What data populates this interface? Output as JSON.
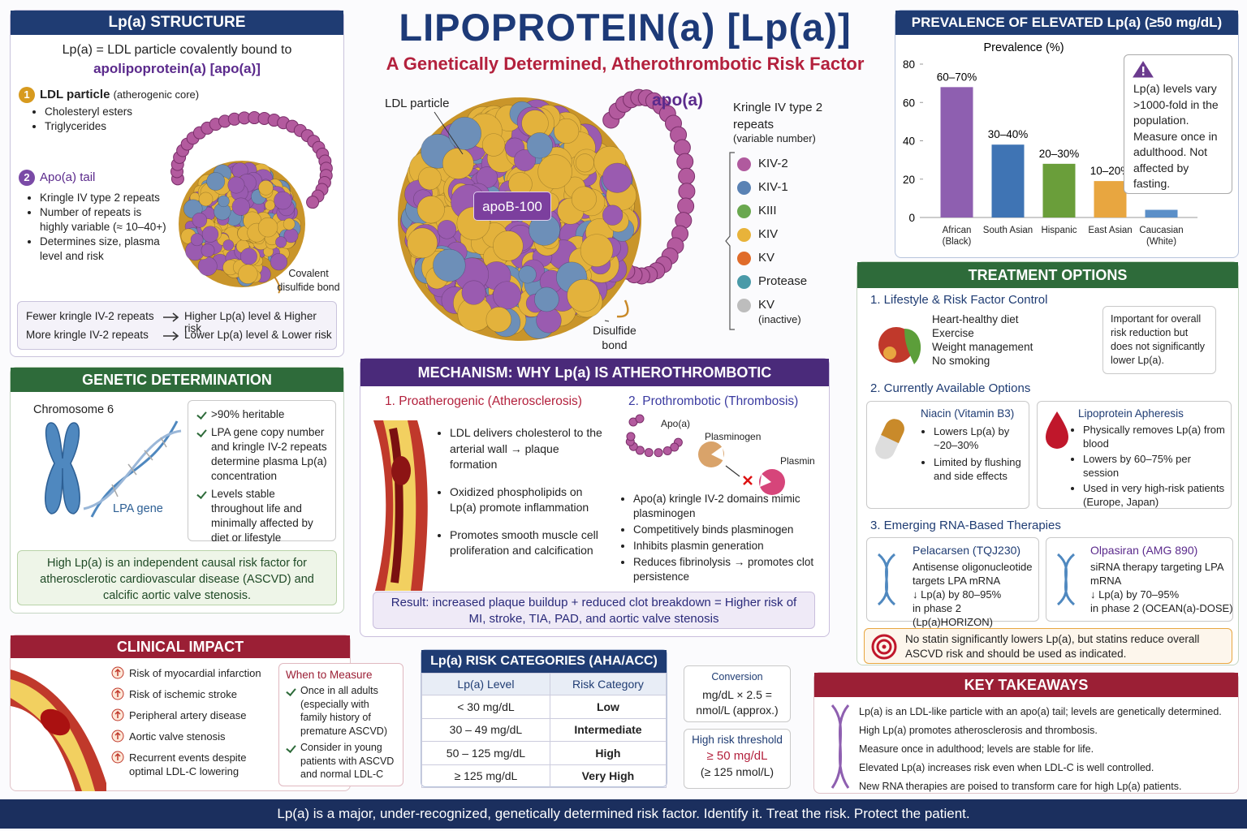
{
  "header": {
    "title": "LIPOPROTEIN(a) [Lp(a)]",
    "subtitle": "A Genetically Determined, Atherothrombotic Risk Factor"
  },
  "structure": {
    "title": "Lp(a) STRUCTURE",
    "intro": "Lp(a) = LDL particle covalently bound to",
    "intro_em": "apolipoprotein(a) [apo(a)]",
    "items": [
      {
        "number": "1",
        "label": "LDL particle",
        "note": "(atherogenic core)",
        "bullets": [
          "Cholesteryl esters",
          "Triglycerides"
        ]
      },
      {
        "number": "2",
        "label": "Apo(a) tail",
        "bullets": [
          "Kringle IV type 2 repeats",
          "Number of repeats is highly variable (≈ 10–40+)",
          "Determines size, plasma level and risk"
        ]
      }
    ],
    "bond_label": "Covalent disulfide bond",
    "rules": [
      {
        "left": "Fewer kringle IV-2 repeats",
        "right": "Higher Lp(a) level & Higher risk"
      },
      {
        "left": "More kringle IV-2 repeats",
        "right": "Lower Lp(a) level & Lower risk"
      }
    ]
  },
  "diagram": {
    "ldl_label": "LDL particle",
    "apo_label": "apo(a)",
    "apob_label": "apoB-100",
    "bond_label": "Disulfide bond",
    "legend_title": "Kringle IV type 2 repeats",
    "legend_note": "(variable number)",
    "legend": [
      {
        "name": "KIV-2",
        "color": "#b05a9e"
      },
      {
        "name": "KIV-1",
        "color": "#5a82b4"
      },
      {
        "name": "KIII",
        "color": "#6aa84f"
      },
      {
        "name": "KIV",
        "color": "#e8b33a"
      },
      {
        "name": "KV",
        "color": "#e06c2a"
      },
      {
        "name": "Protease",
        "color": "#4a9aa8"
      },
      {
        "name": "KV",
        "note": "(inactive)",
        "color": "#bdbdbd"
      }
    ]
  },
  "genetic": {
    "title": "GENETIC DETERMINATION",
    "chromosome": "Chromosome 6",
    "gene": "LPA gene",
    "checks": [
      ">90% heritable",
      "LPA gene copy number and kringle IV-2 repeats determine plasma Lp(a) concentration",
      "Levels stable throughout life and minimally affected by diet or lifestyle"
    ],
    "callout": "High Lp(a) is an independent causal risk factor for atherosclerotic cardiovascular disease (ASCVD) and calcific aortic valve stenosis."
  },
  "mechanism": {
    "title": "MECHANISM: WHY Lp(a) IS ATHEROTHROMBOTIC",
    "columns": [
      {
        "heading": "1.  Proatherogenic (Atherosclerosis)",
        "bullets": [
          "LDL delivers cholesterol to the arterial wall → plaque formation",
          "Oxidized phospholipids on Lp(a) promote inflammation",
          "Promotes smooth muscle cell proliferation and calcification"
        ]
      },
      {
        "heading": "2.  Prothrombotic (Thrombosis)",
        "labels": [
          "Apo(a)",
          "Plasminogen",
          "Plasmin"
        ],
        "bullets": [
          "Apo(a) kringle IV-2 domains mimic plasminogen",
          "Competitively binds plasminogen",
          "Inhibits plasmin generation",
          "Reduces fibrinolysis → promotes clot persistence"
        ]
      }
    ],
    "result": "Result: increased plaque buildup + reduced clot breakdown = Higher risk of MI, stroke, TIA, PAD, and aortic valve stenosis"
  },
  "clinical": {
    "title": "CLINICAL IMPACT",
    "risks": [
      "Risk of myocardial infarction",
      "Risk of ischemic stroke",
      "Peripheral artery disease",
      "Aortic valve stenosis",
      "Recurrent events despite optimal LDL-C lowering"
    ],
    "measure_title": "When to Measure",
    "measure": [
      "Once in all adults (especially with family history of premature ASCVD)",
      "Consider in young patients with ASCVD and normal LDL-C"
    ]
  },
  "risk_table": {
    "title": "Lp(a) RISK CATEGORIES (AHA/ACC)",
    "columns": [
      "Lp(a) Level",
      "Risk Category"
    ],
    "rows": [
      [
        "< 30 mg/dL",
        "Low"
      ],
      [
        "30 – 49 mg/dL",
        "Intermediate"
      ],
      [
        "50 – 125 mg/dL",
        "High"
      ],
      [
        "≥ 125 mg/dL",
        "Very High"
      ]
    ]
  },
  "conversion": {
    "title": "Conversion",
    "text": "mg/dL × 2.5 = nmol/L (approx.)"
  },
  "threshold": {
    "title": "High risk threshold",
    "value": "≥ 50 mg/dL",
    "alt": "(≥ 125 nmol/L)"
  },
  "chart_data": {
    "type": "bar",
    "title": "PREVALENCE OF ELEVATED Lp(a) (≥50 mg/dL)",
    "y_label": "Prevalence (%)",
    "categories": [
      "African (Black)",
      "South Asian",
      "Hispanic",
      "East Asian",
      "Caucasian (White)"
    ],
    "values": [
      68,
      38,
      28,
      19,
      4
    ],
    "value_labels": [
      "60–70%",
      "30–40%",
      "20–30%",
      "10–20%",
      null
    ],
    "colors": [
      "#8e5fb0",
      "#3f74b4",
      "#6a9e3a",
      "#e8a640",
      "#5b8fc8"
    ],
    "ylim": [
      0,
      80
    ],
    "yticks": [
      0,
      20,
      40,
      60,
      80
    ],
    "grid": false,
    "note": "Lp(a) levels vary >1000-fold in the population. Measure once in adulthood. Not affected by fasting."
  },
  "treatment": {
    "title": "TREATMENT OPTIONS",
    "sections": [
      {
        "heading": "1.  Lifestyle & Risk Factor Control",
        "items": [
          "Heart-healthy diet",
          "Exercise",
          "Weight management",
          "No smoking"
        ],
        "note": "Important for overall risk reduction but does not significantly lower Lp(a)."
      },
      {
        "heading": "2.  Currently Available Options",
        "cards": [
          {
            "title": "Niacin (Vitamin B3)",
            "bullets": [
              "Lowers Lp(a) by ~20–30%",
              "Limited by flushing and side effects"
            ]
          },
          {
            "title": "Lipoprotein Apheresis",
            "bullets": [
              "Physically removes Lp(a) from blood",
              "Lowers by 60–75% per session",
              "Used in very high-risk patients (Europe, Japan)"
            ]
          }
        ]
      },
      {
        "heading": "3.  Emerging RNA-Based Therapies",
        "cards": [
          {
            "title": "Pelacarsen (TQJ230)",
            "lines": [
              "Antisense oligonucleotide targets LPA mRNA",
              "↓ Lp(a) by 80–95%",
              "in phase 2 (Lp(a)HORIZON)"
            ]
          },
          {
            "title": "Olpasiran (AMG 890)",
            "lines": [
              "siRNA therapy targeting LPA mRNA",
              "↓ Lp(a) by 70–95%",
              "in phase 2 (OCEAN(a)-DOSE)"
            ]
          }
        ]
      }
    ],
    "footer": "No statin significantly lowers Lp(a), but statins reduce overall ASCVD risk and should be used as indicated."
  },
  "takeaways": {
    "title": "KEY TAKEAWAYS",
    "items": [
      "Lp(a) is an LDL-like particle with an apo(a) tail; levels are genetically determined.",
      "High Lp(a) promotes atherosclerosis and thrombosis.",
      "Measure once in adulthood; levels are stable for life.",
      "Elevated Lp(a) increases risk even when LDL-C is well controlled.",
      "New RNA therapies are poised to transform care for high Lp(a) patients."
    ]
  },
  "footer": "Lp(a) is a major, under-recognized, genetically determined risk factor. Identify it. Treat the risk. Protect the patient."
}
